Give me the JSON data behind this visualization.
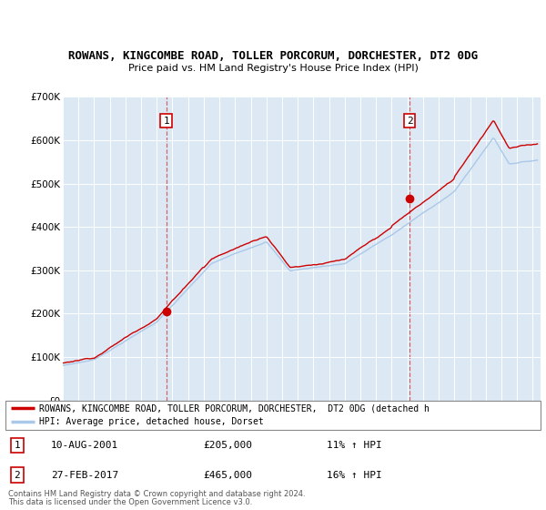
{
  "title1": "ROWANS, KINGCOMBE ROAD, TOLLER PORCORUM, DORCHESTER, DT2 0DG",
  "title2": "Price paid vs. HM Land Registry's House Price Index (HPI)",
  "background_color": "#dce9f5",
  "plot_bg_color": "#dce9f5",
  "line1_color": "#cc0000",
  "line2_color": "#aac8e8",
  "sale1_year": 2001.6,
  "sale1_price": 205000,
  "sale2_year": 2017.15,
  "sale2_price": 465000,
  "sale1_date": "10-AUG-2001",
  "sale1_pct": "11% ↑ HPI",
  "sale2_date": "27-FEB-2017",
  "sale2_pct": "16% ↑ HPI",
  "ylim_min": 0,
  "ylim_max": 700000,
  "xmin": 1995,
  "xmax": 2025.5,
  "legend_line1": "ROWANS, KINGCOMBE ROAD, TOLLER PORCORUM, DORCHESTER,  DT2 0DG (detached h",
  "legend_line2": "HPI: Average price, detached house, Dorset",
  "footer1": "Contains HM Land Registry data © Crown copyright and database right 2024.",
  "footer2": "This data is licensed under the Open Government Licence v3.0."
}
